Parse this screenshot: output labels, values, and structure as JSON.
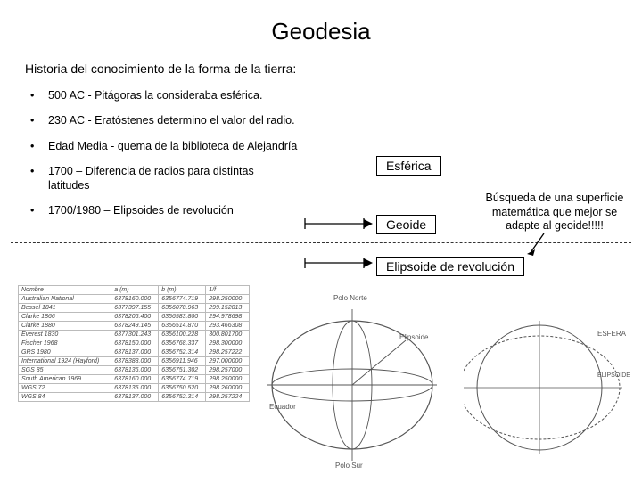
{
  "title": "Geodesia",
  "subtitle": "Historia del conocimiento de la forma de la tierra:",
  "bullets": [
    "500 AC - Pitágoras la consideraba esférica.",
    "230 AC - Eratóstenes determino el valor del radio.",
    "Edad Media - quema de la biblioteca de Alejandría",
    "1700 – Diferencia de radios para distintas latitudes",
    "1700/1980 – Elipsoides de revolución"
  ],
  "boxes": {
    "esferica": "Esférica",
    "geoide": "Geoide",
    "elipsoide": "Elipsoide de revolución"
  },
  "busqueda": "Búsqueda de una superficie matemática que mejor se adapte al geoide!!!!!",
  "table": {
    "headers": [
      "Nombre",
      "a (m)",
      "b (m)",
      "1/f"
    ],
    "rows": [
      [
        "Australian National",
        "6378160.000",
        "6356774.719",
        "298.250000"
      ],
      [
        "Bessel 1841",
        "6377397.155",
        "6356078.963",
        "299.152813"
      ],
      [
        "Clarke 1866",
        "6378206.400",
        "6356583.800",
        "294.978698"
      ],
      [
        "Clarke 1880",
        "6378249.145",
        "6356514.870",
        "293.466308"
      ],
      [
        "Everest 1830",
        "6377301.243",
        "6356100.228",
        "300.801700"
      ],
      [
        "Fischer 1968",
        "6378150.000",
        "6356768.337",
        "298.300000"
      ],
      [
        "GRS 1980",
        "6378137.000",
        "6356752.314",
        "298.257222"
      ],
      [
        "International 1924 (Hayford)",
        "6378388.000",
        "6356911.946",
        "297.000000"
      ],
      [
        "SGS 85",
        "6378136.000",
        "6356751.302",
        "298.257000"
      ],
      [
        "South American 1969",
        "6378160.000",
        "6356774.719",
        "298.250000"
      ],
      [
        "WGS 72",
        "6378135.000",
        "6356750.520",
        "298.260000"
      ],
      [
        "WGS 84",
        "6378137.000",
        "6356752.314",
        "298.257224"
      ]
    ]
  },
  "diagram1": {
    "polo_norte": "Polo Norte",
    "polo_sur": "Polo Sur",
    "elipsoide": "Elipsoide",
    "ecuador": "Ecuador"
  },
  "diagram2": {
    "esfera": "ESFERA",
    "elipsoide": "ELIPSOIDE"
  },
  "colors": {
    "text": "#000000",
    "border": "#000000",
    "table_border": "#bbbbbb",
    "diag": "#555555"
  }
}
